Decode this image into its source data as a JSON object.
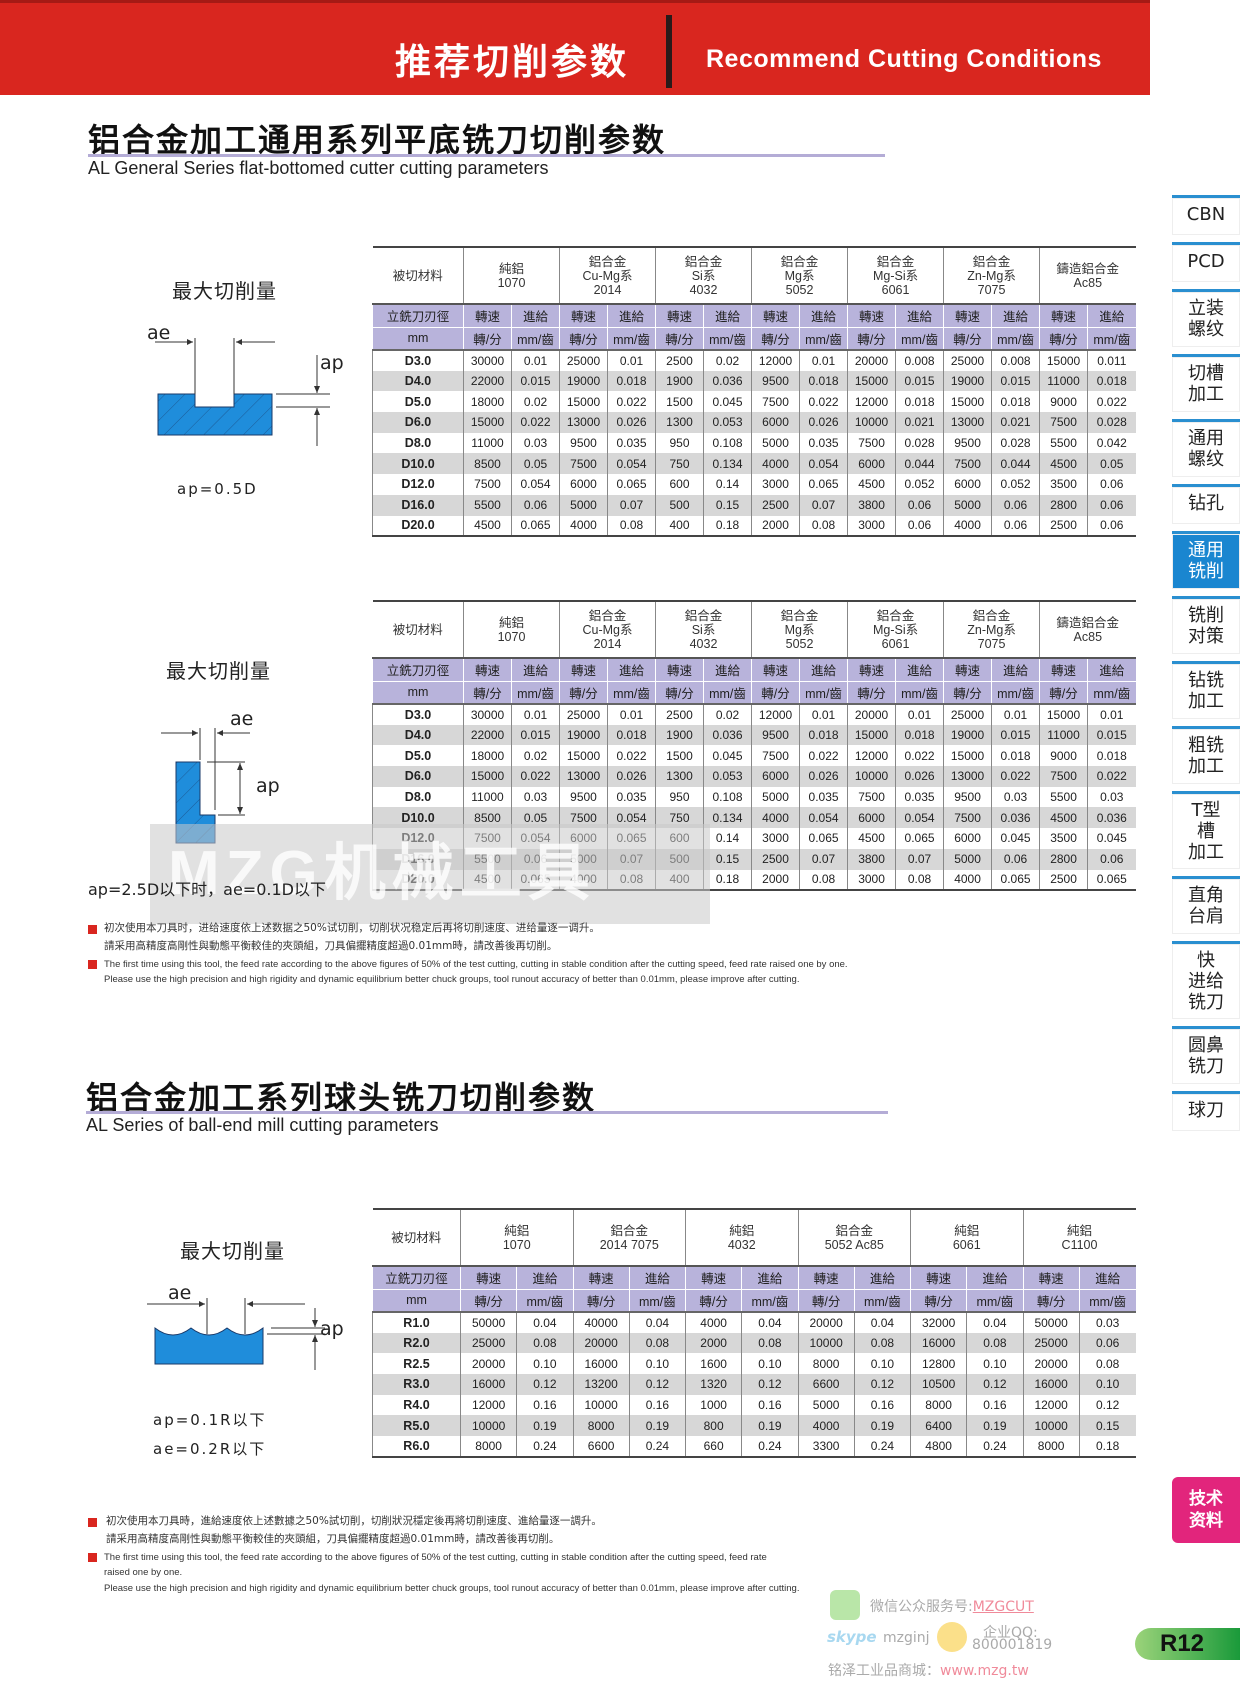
{
  "banner": {
    "title_cn": "推荐切削参数",
    "title_en": "Recommend Cutting Conditions",
    "color": "#d9261f"
  },
  "section1": {
    "title": "铝合金加工通用系列平底铣刀切削参数",
    "subtitle": "AL General Series flat-bottomed cutter cutting parameters"
  },
  "section2": {
    "title": "铝合金加工系列球头铣刀切削参数",
    "subtitle": "AL Series of ball-end mill cutting parameters"
  },
  "diagrams": [
    {
      "title": "最大切削量",
      "ae": "ae",
      "ap": "ap",
      "captions": [
        "ap=0.5D"
      ]
    },
    {
      "title": "最大切削量",
      "ae": "ae",
      "ap": "ap",
      "captions": [
        "ap=2.5D以下时，ae=0.1D以下"
      ]
    },
    {
      "title": "最大切削量",
      "ae": "ae",
      "ap": "ap",
      "captions": [
        "ap=0.1R以下",
        "ae=0.2R以下"
      ]
    }
  ],
  "tables": [
    {
      "material_label": "被切材料",
      "materials": [
        [
          "純鋁",
          "1070"
        ],
        [
          "鋁合金",
          "Cu-Mg系",
          "2014"
        ],
        [
          "鋁合金",
          "Si系",
          "4032"
        ],
        [
          "鋁合金",
          "Mg系",
          "5052"
        ],
        [
          "鋁合金",
          "Mg-Si系",
          "6061"
        ],
        [
          "鋁合金",
          "Zn-Mg系",
          "7075"
        ],
        [
          "鑄造鋁合金",
          "Ac85"
        ]
      ],
      "diameter_label": "立銑刀刃徑",
      "unit_label": "mm",
      "speed_label": "轉速",
      "feed_label": "進給",
      "speed_unit": "轉/分",
      "feed_unit": "mm/齒",
      "rows": [
        {
          "size": "D3.0",
          "values": [
            "30000",
            "0.01",
            "25000",
            "0.01",
            "2500",
            "0.02",
            "12000",
            "0.01",
            "20000",
            "0.008",
            "25000",
            "0.008",
            "15000",
            "0.011"
          ]
        },
        {
          "size": "D4.0",
          "values": [
            "22000",
            "0.015",
            "19000",
            "0.018",
            "1900",
            "0.036",
            "9500",
            "0.018",
            "15000",
            "0.015",
            "19000",
            "0.015",
            "11000",
            "0.018"
          ]
        },
        {
          "size": "D5.0",
          "values": [
            "18000",
            "0.02",
            "15000",
            "0.022",
            "1500",
            "0.045",
            "7500",
            "0.022",
            "12000",
            "0.018",
            "15000",
            "0.018",
            "9000",
            "0.022"
          ]
        },
        {
          "size": "D6.0",
          "values": [
            "15000",
            "0.022",
            "13000",
            "0.026",
            "1300",
            "0.053",
            "6000",
            "0.026",
            "10000",
            "0.021",
            "13000",
            "0.021",
            "7500",
            "0.028"
          ]
        },
        {
          "size": "D8.0",
          "values": [
            "11000",
            "0.03",
            "9500",
            "0.035",
            "950",
            "0.108",
            "5000",
            "0.035",
            "7500",
            "0.028",
            "9500",
            "0.028",
            "5500",
            "0.042"
          ]
        },
        {
          "size": "D10.0",
          "values": [
            "8500",
            "0.05",
            "7500",
            "0.054",
            "750",
            "0.134",
            "4000",
            "0.054",
            "6000",
            "0.044",
            "7500",
            "0.044",
            "4500",
            "0.05"
          ]
        },
        {
          "size": "D12.0",
          "values": [
            "7500",
            "0.054",
            "6000",
            "0.065",
            "600",
            "0.14",
            "3000",
            "0.065",
            "4500",
            "0.052",
            "6000",
            "0.052",
            "3500",
            "0.06"
          ]
        },
        {
          "size": "D16.0",
          "values": [
            "5500",
            "0.06",
            "5000",
            "0.07",
            "500",
            "0.15",
            "2500",
            "0.07",
            "3800",
            "0.06",
            "5000",
            "0.06",
            "2800",
            "0.06"
          ]
        },
        {
          "size": "D20.0",
          "values": [
            "4500",
            "0.065",
            "4000",
            "0.08",
            "400",
            "0.18",
            "2000",
            "0.08",
            "3000",
            "0.06",
            "4000",
            "0.06",
            "2500",
            "0.06"
          ]
        }
      ]
    },
    {
      "material_label": "被切材料",
      "materials": [
        [
          "純鋁",
          "1070"
        ],
        [
          "鋁合金",
          "Cu-Mg系",
          "2014"
        ],
        [
          "鋁合金",
          "Si系",
          "4032"
        ],
        [
          "鋁合金",
          "Mg系",
          "5052"
        ],
        [
          "鋁合金",
          "Mg-Si系",
          "6061"
        ],
        [
          "鋁合金",
          "Zn-Mg系",
          "7075"
        ],
        [
          "鑄造鋁合金",
          "Ac85"
        ]
      ],
      "diameter_label": "立銑刀刃徑",
      "unit_label": "mm",
      "speed_label": "轉速",
      "feed_label": "進給",
      "speed_unit": "轉/分",
      "feed_unit": "mm/齒",
      "rows": [
        {
          "size": "D3.0",
          "values": [
            "30000",
            "0.01",
            "25000",
            "0.01",
            "2500",
            "0.02",
            "12000",
            "0.01",
            "20000",
            "0.01",
            "25000",
            "0.01",
            "15000",
            "0.01"
          ]
        },
        {
          "size": "D4.0",
          "values": [
            "22000",
            "0.015",
            "19000",
            "0.018",
            "1900",
            "0.036",
            "9500",
            "0.018",
            "15000",
            "0.018",
            "19000",
            "0.015",
            "11000",
            "0.015"
          ]
        },
        {
          "size": "D5.0",
          "values": [
            "18000",
            "0.02",
            "15000",
            "0.022",
            "1500",
            "0.045",
            "7500",
            "0.022",
            "12000",
            "0.022",
            "15000",
            "0.018",
            "9000",
            "0.018"
          ]
        },
        {
          "size": "D6.0",
          "values": [
            "15000",
            "0.022",
            "13000",
            "0.026",
            "1300",
            "0.053",
            "6000",
            "0.026",
            "10000",
            "0.026",
            "13000",
            "0.022",
            "7500",
            "0.022"
          ]
        },
        {
          "size": "D8.0",
          "values": [
            "11000",
            "0.03",
            "9500",
            "0.035",
            "950",
            "0.108",
            "5000",
            "0.035",
            "7500",
            "0.035",
            "9500",
            "0.03",
            "5500",
            "0.03"
          ]
        },
        {
          "size": "D10.0",
          "values": [
            "8500",
            "0.05",
            "7500",
            "0.054",
            "750",
            "0.134",
            "4000",
            "0.054",
            "6000",
            "0.054",
            "7500",
            "0.036",
            "4500",
            "0.036"
          ]
        },
        {
          "size": "D12.0",
          "values": [
            "7500",
            "0.054",
            "6000",
            "0.065",
            "600",
            "0.14",
            "3000",
            "0.065",
            "4500",
            "0.065",
            "6000",
            "0.045",
            "3500",
            "0.045"
          ]
        },
        {
          "size": "D16.0",
          "values": [
            "5500",
            "0.06",
            "5000",
            "0.07",
            "500",
            "0.15",
            "2500",
            "0.07",
            "3800",
            "0.07",
            "5000",
            "0.06",
            "2800",
            "0.06"
          ]
        },
        {
          "size": "D20.0",
          "values": [
            "4500",
            "0.065",
            "4000",
            "0.08",
            "400",
            "0.18",
            "2000",
            "0.08",
            "3000",
            "0.08",
            "4000",
            "0.065",
            "2500",
            "0.065"
          ]
        }
      ]
    },
    {
      "material_label": "被切材料",
      "materials": [
        [
          "純鋁",
          "1070"
        ],
        [
          "鋁合金",
          "2014  7075"
        ],
        [
          "純鋁",
          "4032"
        ],
        [
          "鋁合金",
          "5052  Ac85"
        ],
        [
          "純鋁",
          "6061"
        ],
        [
          "純鋁",
          "C1100"
        ]
      ],
      "diameter_label": "立銑刀刃徑",
      "unit_label": "mm",
      "speed_label": "轉速",
      "feed_label": "進給",
      "speed_unit": "轉/分",
      "feed_unit": "mm/齒",
      "rows": [
        {
          "size": "R1.0",
          "values": [
            "50000",
            "0.04",
            "40000",
            "0.04",
            "4000",
            "0.04",
            "20000",
            "0.04",
            "32000",
            "0.04",
            "50000",
            "0.03"
          ]
        },
        {
          "size": "R2.0",
          "values": [
            "25000",
            "0.08",
            "20000",
            "0.08",
            "2000",
            "0.08",
            "10000",
            "0.08",
            "16000",
            "0.08",
            "25000",
            "0.06"
          ]
        },
        {
          "size": "R2.5",
          "values": [
            "20000",
            "0.10",
            "16000",
            "0.10",
            "1600",
            "0.10",
            "8000",
            "0.10",
            "12800",
            "0.10",
            "20000",
            "0.08"
          ]
        },
        {
          "size": "R3.0",
          "values": [
            "16000",
            "0.12",
            "13200",
            "0.12",
            "1320",
            "0.12",
            "6600",
            "0.12",
            "10500",
            "0.12",
            "16000",
            "0.10"
          ]
        },
        {
          "size": "R4.0",
          "values": [
            "12000",
            "0.16",
            "10000",
            "0.16",
            "1000",
            "0.16",
            "5000",
            "0.16",
            "8000",
            "0.16",
            "12000",
            "0.12"
          ]
        },
        {
          "size": "R5.0",
          "values": [
            "10000",
            "0.19",
            "8000",
            "0.19",
            "800",
            "0.19",
            "4000",
            "0.19",
            "6400",
            "0.19",
            "10000",
            "0.15"
          ]
        },
        {
          "size": "R6.0",
          "values": [
            "8000",
            "0.24",
            "6600",
            "0.24",
            "660",
            "0.24",
            "3300",
            "0.24",
            "4800",
            "0.24",
            "8000",
            "0.18"
          ]
        }
      ]
    }
  ],
  "notes1": {
    "cn1": "初次使用本刀具时，进给速度依上述数据之50%试切削，切削状况稳定后再将切削速度、进给量逐一调升。",
    "cn2": "請采用高精度高剛性與動態平衡較佳的夾頭組，刀具偏擺精度超過0.01mm時，請改善後再切削。",
    "en1": "The first time using this tool, the feed rate according to the above figures of 50% of the test cutting, cutting in stable condition after the cutting speed, feed rate raised one by one.",
    "en2": "Please use the high precision and high rigidity and dynamic equilibrium better chuck groups, tool runout accuracy of better than 0.01mm, please improve after cutting."
  },
  "notes2": {
    "cn1": "初次使用本刀具時，進給速度依上述數據之50%試切削，切削狀況穩定後再將切削速度、進給量逐一調升。",
    "cn2": "請采用高精度高剛性與動態平衡較佳的夾頭組，刀具偏擺精度超過0.01mm時，請改善後再切削。",
    "en1": "The first time using this tool, the feed rate according to the above figures of 50% of the test cutting, cutting in stable condition after the cutting speed, feed rate",
    "en1b": "raised one by one.",
    "en2": "Please use the high precision and high rigidity and dynamic equilibrium better chuck groups, tool runout accuracy of better than 0.01mm, please improve after cutting."
  },
  "watermark": "MZG机械工具",
  "sidebar": {
    "items": [
      {
        "label": "CBN"
      },
      {
        "label": "PCD"
      },
      {
        "label": "立装\n螺纹"
      },
      {
        "label": "切槽\n加工"
      },
      {
        "label": "通用\n螺纹"
      },
      {
        "label": "钻孔"
      },
      {
        "label": "通用\n铣削",
        "active": true
      },
      {
        "label": "铣削\n对策"
      },
      {
        "label": "钻铣\n加工"
      },
      {
        "label": "粗铣\n加工"
      },
      {
        "label": "T型\n槽\n加工"
      },
      {
        "label": "直角\n台肩"
      },
      {
        "label": "快\n进给\n铣刀"
      },
      {
        "label": "圆鼻\n铣刀"
      },
      {
        "label": "球刀"
      }
    ],
    "tech_label": "技术\n资料",
    "accent": "#1a86d0"
  },
  "footer": {
    "wechat_label": "微信公众服务号:",
    "wechat_id": "MZGCUT",
    "skype_label": "skype",
    "skype_id": "mzginj",
    "qq_label": "企业QQ:",
    "qq_id": "800001819",
    "shop_label": "铭泽工业品商城：",
    "shop_url": "www.mzg.tw",
    "page_number": "R12"
  }
}
